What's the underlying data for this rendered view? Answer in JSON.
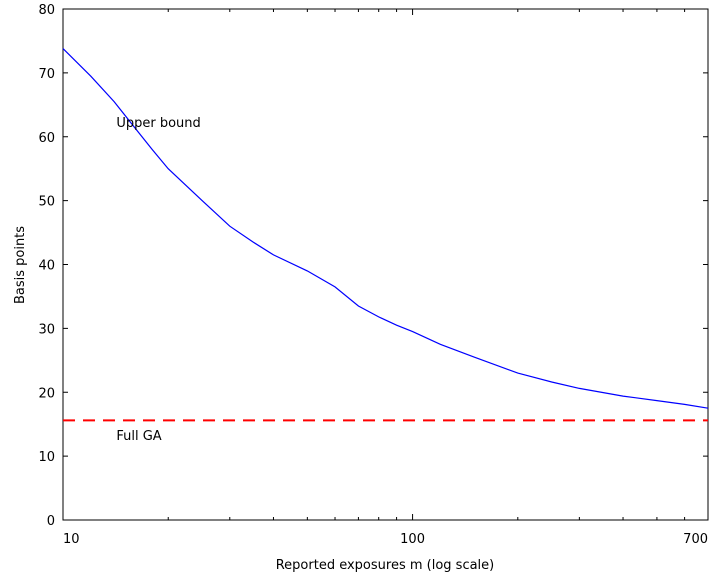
{
  "chart_data": {
    "type": "line",
    "title": "",
    "xlabel": "Reported exposures m (log scale)",
    "ylabel": "Basis points",
    "x_scale": "log",
    "xlim": [
      10,
      700
    ],
    "ylim": [
      0,
      80
    ],
    "x_ticks": [
      {
        "value": 10,
        "label": "10"
      },
      {
        "value": 100,
        "label": "100"
      },
      {
        "value": 700,
        "label": "700"
      }
    ],
    "y_ticks": [
      {
        "value": 0,
        "label": "0"
      },
      {
        "value": 10,
        "label": "10"
      },
      {
        "value": 20,
        "label": "20"
      },
      {
        "value": 30,
        "label": "30"
      },
      {
        "value": 40,
        "label": "40"
      },
      {
        "value": 50,
        "label": "50"
      },
      {
        "value": 60,
        "label": "60"
      },
      {
        "value": 70,
        "label": "70"
      },
      {
        "value": 80,
        "label": "80"
      }
    ],
    "grid": false,
    "series": [
      {
        "name": "Upper bound",
        "color": "#0000ff",
        "style": "solid",
        "x": [
          10,
          12,
          14,
          16,
          18,
          20,
          25,
          30,
          35,
          40,
          50,
          60,
          70,
          80,
          90,
          100,
          120,
          150,
          200,
          250,
          300,
          400,
          500,
          600,
          700
        ],
        "y": [
          73.8,
          69.5,
          65.5,
          61.5,
          58,
          55,
          50,
          46,
          43.5,
          41.5,
          39,
          36.5,
          33.5,
          31.8,
          30.5,
          29.5,
          27.5,
          25.5,
          23,
          21.6,
          20.6,
          19.4,
          18.7,
          18.1,
          17.5
        ]
      },
      {
        "name": "Full GA",
        "color": "#ff0000",
        "style": "dashed",
        "x": [
          10,
          700
        ],
        "y": [
          15.6,
          15.6
        ]
      }
    ],
    "annotations": [
      {
        "text": "Upper bound",
        "x": 16,
        "y": 61.5
      },
      {
        "text": "Full GA",
        "x": 16,
        "y": 12.5
      }
    ]
  }
}
